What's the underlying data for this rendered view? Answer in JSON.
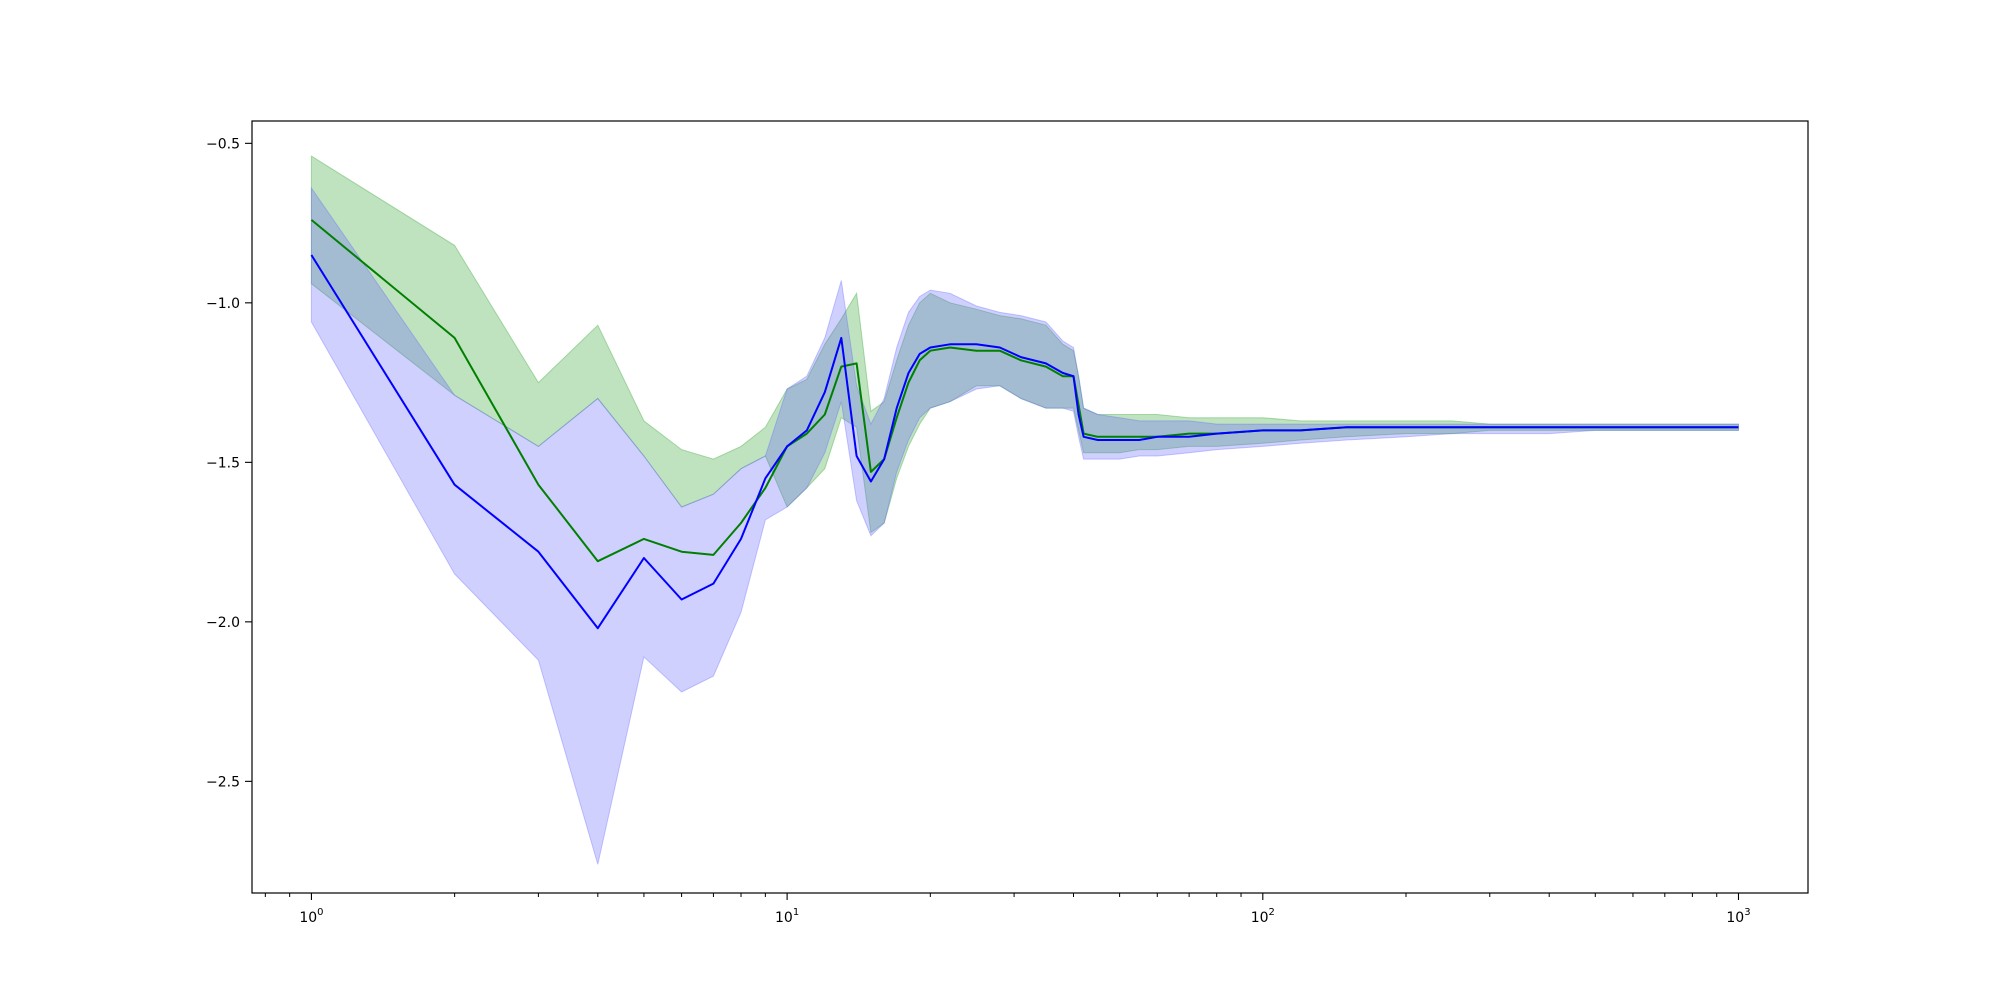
{
  "chart_data": {
    "type": "line",
    "title": "",
    "xlabel": "",
    "ylabel": "",
    "xscale": "log",
    "xlim": [
      0.75,
      1400
    ],
    "ylim": [
      -2.85,
      -0.43
    ],
    "grid": false,
    "legend": "none",
    "xticks": [
      {
        "value": 1,
        "base": "10",
        "exp": "0"
      },
      {
        "value": 10,
        "base": "10",
        "exp": "1"
      },
      {
        "value": 100,
        "base": "10",
        "exp": "2"
      },
      {
        "value": 1000,
        "base": "10",
        "exp": "3"
      }
    ],
    "yticks": [
      {
        "value": -0.5,
        "label": "−0.5"
      },
      {
        "value": -1.0,
        "label": "−1.0"
      },
      {
        "value": -1.5,
        "label": "−1.5"
      },
      {
        "value": -2.0,
        "label": "−2.0"
      },
      {
        "value": -2.5,
        "label": "−2.5"
      }
    ],
    "series": [
      {
        "color": "#008000",
        "band_color": "#2ca02c",
        "x": [
          1,
          2,
          3,
          4,
          5,
          6,
          7,
          8,
          9,
          10,
          11,
          12,
          13,
          14,
          15,
          16,
          17,
          18,
          19,
          20,
          22,
          25,
          28,
          31,
          35,
          38,
          40,
          41,
          42,
          45,
          50,
          55,
          60,
          70,
          80,
          100,
          120,
          150,
          200,
          250,
          300,
          400,
          500,
          700,
          1000
        ],
        "y": [
          -0.74,
          -1.11,
          -1.57,
          -1.81,
          -1.74,
          -1.78,
          -1.79,
          -1.69,
          -1.58,
          -1.45,
          -1.41,
          -1.35,
          -1.2,
          -1.19,
          -1.53,
          -1.49,
          -1.36,
          -1.25,
          -1.18,
          -1.15,
          -1.14,
          -1.15,
          -1.15,
          -1.18,
          -1.2,
          -1.23,
          -1.23,
          -1.32,
          -1.41,
          -1.42,
          -1.42,
          -1.42,
          -1.42,
          -1.41,
          -1.41,
          -1.4,
          -1.4,
          -1.39,
          -1.39,
          -1.39,
          -1.39,
          -1.39,
          -1.39,
          -1.39,
          -1.39
        ],
        "upper": [
          -0.54,
          -0.82,
          -1.25,
          -1.07,
          -1.37,
          -1.46,
          -1.49,
          -1.45,
          -1.39,
          -1.27,
          -1.24,
          -1.13,
          -1.05,
          -0.97,
          -1.34,
          -1.31,
          -1.18,
          -1.07,
          -1.0,
          -0.97,
          -1.0,
          -1.02,
          -1.04,
          -1.05,
          -1.07,
          -1.13,
          -1.15,
          -1.23,
          -1.33,
          -1.35,
          -1.35,
          -1.35,
          -1.35,
          -1.36,
          -1.36,
          -1.36,
          -1.37,
          -1.37,
          -1.37,
          -1.37,
          -1.38,
          -1.38,
          -1.38,
          -1.38,
          -1.38
        ],
        "lower": [
          -0.94,
          -1.29,
          -1.45,
          -1.3,
          -1.48,
          -1.64,
          -1.6,
          -1.52,
          -1.48,
          -1.64,
          -1.58,
          -1.52,
          -1.36,
          -1.39,
          -1.72,
          -1.69,
          -1.55,
          -1.45,
          -1.38,
          -1.33,
          -1.31,
          -1.26,
          -1.26,
          -1.3,
          -1.33,
          -1.33,
          -1.33,
          -1.4,
          -1.47,
          -1.47,
          -1.47,
          -1.46,
          -1.46,
          -1.45,
          -1.45,
          -1.44,
          -1.43,
          -1.42,
          -1.41,
          -1.41,
          -1.4,
          -1.4,
          -1.4,
          -1.4,
          -1.4
        ]
      },
      {
        "color": "#0000ff",
        "band_color": "#6464ff",
        "x": [
          1,
          2,
          3,
          4,
          5,
          6,
          7,
          8,
          9,
          10,
          11,
          12,
          13,
          14,
          15,
          16,
          17,
          18,
          19,
          20,
          22,
          25,
          28,
          31,
          35,
          38,
          40,
          41,
          42,
          45,
          50,
          55,
          60,
          70,
          80,
          100,
          120,
          150,
          200,
          250,
          300,
          400,
          500,
          700,
          1000
        ],
        "y": [
          -0.85,
          -1.57,
          -1.78,
          -2.02,
          -1.8,
          -1.93,
          -1.88,
          -1.74,
          -1.55,
          -1.45,
          -1.4,
          -1.28,
          -1.11,
          -1.48,
          -1.56,
          -1.49,
          -1.33,
          -1.22,
          -1.16,
          -1.14,
          -1.13,
          -1.13,
          -1.14,
          -1.17,
          -1.19,
          -1.22,
          -1.23,
          -1.35,
          -1.42,
          -1.43,
          -1.43,
          -1.43,
          -1.42,
          -1.42,
          -1.41,
          -1.4,
          -1.4,
          -1.39,
          -1.39,
          -1.39,
          -1.39,
          -1.39,
          -1.39,
          -1.39,
          -1.39
        ],
        "upper": [
          -0.64,
          -1.29,
          -1.45,
          -1.3,
          -1.48,
          -1.64,
          -1.6,
          -1.52,
          -1.48,
          -1.27,
          -1.23,
          -1.11,
          -0.93,
          -1.26,
          -1.38,
          -1.3,
          -1.14,
          -1.03,
          -0.98,
          -0.96,
          -0.97,
          -1.01,
          -1.03,
          -1.04,
          -1.06,
          -1.12,
          -1.14,
          -1.23,
          -1.33,
          -1.35,
          -1.36,
          -1.37,
          -1.37,
          -1.37,
          -1.38,
          -1.38,
          -1.38,
          -1.38,
          -1.38,
          -1.38,
          -1.38,
          -1.38,
          -1.38,
          -1.38,
          -1.38
        ],
        "lower": [
          -1.06,
          -1.85,
          -2.12,
          -2.76,
          -2.11,
          -2.22,
          -2.17,
          -1.97,
          -1.68,
          -1.64,
          -1.58,
          -1.47,
          -1.31,
          -1.62,
          -1.73,
          -1.69,
          -1.53,
          -1.43,
          -1.36,
          -1.33,
          -1.31,
          -1.27,
          -1.26,
          -1.3,
          -1.33,
          -1.33,
          -1.34,
          -1.42,
          -1.49,
          -1.49,
          -1.49,
          -1.48,
          -1.48,
          -1.47,
          -1.46,
          -1.45,
          -1.44,
          -1.43,
          -1.42,
          -1.41,
          -1.41,
          -1.41,
          -1.4,
          -1.4,
          -1.4
        ]
      }
    ]
  }
}
